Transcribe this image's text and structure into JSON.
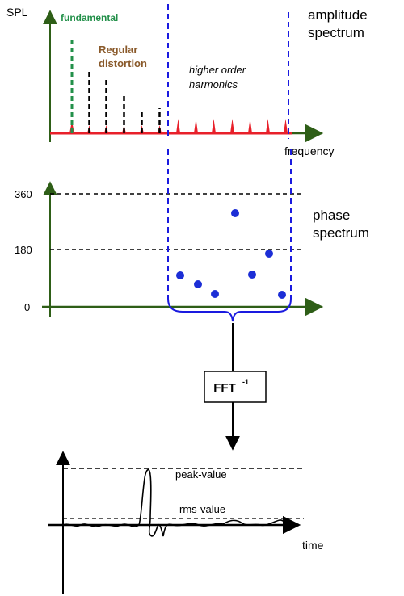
{
  "amplitude_panel": {
    "y_label": "SPL",
    "title_line1": "amplitude",
    "title_line2": "spectrum",
    "x_label": "frequency",
    "label_fundamental": "fundamental",
    "label_regular_line1": "Regular",
    "label_regular_line2": "distortion",
    "label_higher_line1": "higher order",
    "label_higher_line2": "harmonics"
  },
  "phase_panel": {
    "title_line1": "phase",
    "title_line2": "spectrum",
    "tick_360": "360",
    "tick_180": "180",
    "tick_0": "0"
  },
  "fft_box": {
    "label": "FFT",
    "exponent": "-1"
  },
  "time_panel": {
    "x_label": "time",
    "label_peak": "peak-value",
    "label_rms": "rms-value"
  },
  "colors": {
    "axis": "#2e5e17",
    "fundamental": "#23904a",
    "regular_distortion": "#8a5a2b",
    "spectrum_red": "#e8202a",
    "window_blue": "#1a1adf",
    "dot_blue": "#1c2ed6",
    "black": "#000000"
  }
}
